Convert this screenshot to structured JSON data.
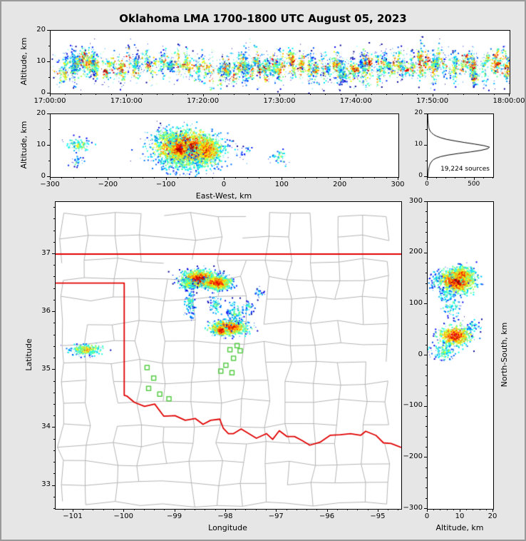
{
  "title": "Oklahoma LMA 1700-1800 UTC August 05, 2023",
  "figure": {
    "background": "#e6e6e6",
    "border_color": "#9a9a9a",
    "panel_background": "#ffffff",
    "frame_color": "#000000",
    "county_line_color": "#b4b4b4",
    "state_border_color": "#e00000",
    "station_color": "#55cc44",
    "histogram_line_color": "#000000",
    "colormap": "jet"
  },
  "chart_data": [
    {
      "id": "alt_time",
      "type": "scatter",
      "xlabel": "",
      "ylabel": "Altitude, km",
      "xlim": [
        0,
        3600
      ],
      "ylim": [
        0,
        20
      ],
      "xticks": [
        {
          "v": 0,
          "label": "17:00:00"
        },
        {
          "v": 600,
          "label": "17:10:00"
        },
        {
          "v": 1200,
          "label": "17:20:00"
        },
        {
          "v": 1800,
          "label": "17:30:00"
        },
        {
          "v": 2400,
          "label": "17:40:00"
        },
        {
          "v": 3000,
          "label": "17:50:00"
        },
        {
          "v": 3600,
          "label": "18:00:00"
        }
      ],
      "yticks": [
        {
          "v": 0,
          "label": "0"
        },
        {
          "v": 10,
          "label": "10"
        },
        {
          "v": 20,
          "label": "20"
        }
      ],
      "x_minor": 120,
      "y_minor": 5,
      "flash_band": {
        "n_flashes": 270,
        "x_range": [
          10,
          3590
        ],
        "alt_mean": 8.6,
        "alt_sigma": 1.7,
        "pts_min": 5,
        "pts_max": 75,
        "x_jitter": 11,
        "spread_min": 0.6,
        "spread_max": 2.8,
        "bg_n": 550,
        "bg_sigma": 2.8,
        "bg_tmax": 0.6
      }
    },
    {
      "id": "alt_ew",
      "type": "scatter",
      "xlabel": "East-West, km",
      "ylabel": "Altitude, km",
      "xlim": [
        -300,
        300
      ],
      "ylim": [
        0,
        20
      ],
      "xticks": [
        {
          "v": -300,
          "label": "−300"
        },
        {
          "v": -200,
          "label": "−200"
        },
        {
          "v": -100,
          "label": "−100"
        },
        {
          "v": 0,
          "label": "0"
        },
        {
          "v": 100,
          "label": "100"
        },
        {
          "v": 200,
          "label": "200"
        },
        {
          "v": 300,
          "label": "300"
        }
      ],
      "yticks": [
        {
          "v": 0,
          "label": "0"
        },
        {
          "v": 10,
          "label": "10"
        },
        {
          "v": 20,
          "label": "20"
        }
      ],
      "x_minor": 20,
      "y_minor": 5,
      "clusters": [
        {
          "cx": -65,
          "cy": 9.2,
          "sx": 26,
          "sy": 2.7,
          "n": 2100,
          "tmax": 1.0
        },
        {
          "cx": -78,
          "cy": 9.0,
          "sx": 8,
          "sy": 1.6,
          "n": 500,
          "tmax": 1.0
        },
        {
          "cx": -30,
          "cy": 8.3,
          "sx": 13,
          "sy": 2.3,
          "n": 500,
          "tmax": 0.85
        },
        {
          "cx": -70,
          "cy": 4.2,
          "sx": 28,
          "sy": 1.6,
          "n": 200,
          "tmax": 0.45
        },
        {
          "cx": -100,
          "cy": 12.8,
          "sx": 16,
          "sy": 1.4,
          "n": 140,
          "tmax": 0.5
        },
        {
          "cx": -250,
          "cy": 10.2,
          "sx": 11,
          "sy": 1.2,
          "n": 100,
          "tmax": 0.55
        },
        {
          "cx": -254,
          "cy": 4.6,
          "sx": 5,
          "sy": 0.9,
          "n": 30,
          "tmax": 0.4
        },
        {
          "cx": 95,
          "cy": 6.2,
          "sx": 9,
          "sy": 1.3,
          "n": 45,
          "tmax": 0.45
        },
        {
          "cx": 40,
          "cy": 7.5,
          "sx": 8,
          "sy": 1.2,
          "n": 25,
          "tmax": 0.35
        }
      ]
    },
    {
      "id": "hist",
      "type": "line",
      "xlabel": "",
      "ylabel": "",
      "xlim": [
        0,
        700
      ],
      "ylim": [
        0,
        20
      ],
      "xticks": [
        {
          "v": 0,
          "label": "0"
        },
        {
          "v": 500,
          "label": "500"
        }
      ],
      "yticks": [
        {
          "v": 0,
          "label": "0"
        },
        {
          "v": 10,
          "label": "10"
        },
        {
          "v": 20,
          "label": "20"
        }
      ],
      "x_minor": 100,
      "y_minor": 5,
      "annotation": "19,224 sources",
      "profile": {
        "alt": [
          0,
          0.5,
          1,
          1.5,
          2,
          2.5,
          3,
          3.5,
          4,
          4.5,
          5,
          5.5,
          6,
          6.5,
          7,
          7.5,
          8,
          8.5,
          9,
          9.5,
          10,
          10.5,
          11,
          11.5,
          12,
          12.5,
          13,
          13.5,
          14,
          14.5,
          15,
          15.5,
          16,
          16.5,
          17,
          17.5,
          18,
          18.5,
          19,
          19.5,
          20
        ],
        "count": [
          2,
          3,
          4,
          6,
          8,
          10,
          14,
          18,
          24,
          32,
          45,
          60,
          90,
          140,
          220,
          330,
          460,
          570,
          640,
          660,
          600,
          500,
          390,
          290,
          200,
          140,
          95,
          65,
          45,
          30,
          20,
          14,
          10,
          8,
          6,
          5,
          4,
          3,
          3,
          2,
          2
        ]
      }
    },
    {
      "id": "map",
      "type": "scatter_map",
      "xlabel": "Longitude",
      "ylabel": "Latitude",
      "xlim": [
        -101.35,
        -94.55
      ],
      "ylim": [
        32.6,
        37.9
      ],
      "xticks": [
        {
          "v": -101,
          "label": "−101"
        },
        {
          "v": -100,
          "label": "−100"
        },
        {
          "v": -99,
          "label": "−99"
        },
        {
          "v": -98,
          "label": "−98"
        },
        {
          "v": -97,
          "label": "−97"
        },
        {
          "v": -96,
          "label": "−96"
        },
        {
          "v": -95,
          "label": "−95"
        }
      ],
      "yticks": [
        {
          "v": 33,
          "label": "33"
        },
        {
          "v": 34,
          "label": "34"
        },
        {
          "v": 35,
          "label": "35"
        },
        {
          "v": 36,
          "label": "36"
        },
        {
          "v": 37,
          "label": "37"
        }
      ],
      "x_minor": 0.2,
      "y_minor": 0.2,
      "state_border": [
        [
          [
            -101.35,
            37.0
          ],
          [
            -94.55,
            37.0
          ]
        ],
        [
          [
            -101.35,
            36.5
          ],
          [
            -100.0,
            36.5
          ],
          [
            -100.0,
            34.56
          ],
          [
            -99.95,
            34.55
          ],
          [
            -99.8,
            34.44
          ],
          [
            -99.6,
            34.37
          ],
          [
            -99.4,
            34.41
          ],
          [
            -99.22,
            34.2
          ],
          [
            -99.0,
            34.21
          ],
          [
            -98.8,
            34.13
          ],
          [
            -98.6,
            34.16
          ],
          [
            -98.45,
            34.06
          ],
          [
            -98.3,
            34.13
          ],
          [
            -98.12,
            34.15
          ],
          [
            -98.05,
            33.99
          ],
          [
            -97.95,
            33.9
          ],
          [
            -97.85,
            33.9
          ],
          [
            -97.7,
            33.98
          ],
          [
            -97.55,
            33.9
          ],
          [
            -97.4,
            33.82
          ],
          [
            -97.2,
            33.9
          ],
          [
            -97.08,
            33.8
          ],
          [
            -96.95,
            33.95
          ],
          [
            -96.8,
            33.85
          ],
          [
            -96.65,
            33.85
          ],
          [
            -96.5,
            33.78
          ],
          [
            -96.35,
            33.7
          ],
          [
            -96.15,
            33.75
          ],
          [
            -95.95,
            33.87
          ],
          [
            -95.75,
            33.88
          ],
          [
            -95.55,
            33.9
          ],
          [
            -95.35,
            33.87
          ],
          [
            -95.25,
            33.94
          ],
          [
            -95.05,
            33.87
          ],
          [
            -94.9,
            33.74
          ],
          [
            -94.75,
            33.73
          ],
          [
            -94.55,
            33.66
          ]
        ]
      ],
      "stations": [
        [
          -99.55,
          35.04
        ],
        [
          -99.42,
          34.86
        ],
        [
          -99.52,
          34.68
        ],
        [
          -99.3,
          34.58
        ],
        [
          -99.12,
          34.5
        ],
        [
          -97.78,
          35.42
        ],
        [
          -97.72,
          35.33
        ],
        [
          -97.92,
          35.35
        ],
        [
          -97.85,
          35.2
        ],
        [
          -98.0,
          35.08
        ],
        [
          -97.88,
          34.95
        ],
        [
          -98.1,
          34.98
        ]
      ],
      "clusters": [
        {
          "cx": -98.5,
          "cy": 36.57,
          "sx": 0.17,
          "sy": 0.065,
          "n": 1300,
          "tmax": 1.0
        },
        {
          "cx": -98.17,
          "cy": 36.5,
          "sx": 0.13,
          "sy": 0.055,
          "n": 850,
          "tmax": 0.95
        },
        {
          "cx": -98.75,
          "cy": 36.48,
          "sx": 0.07,
          "sy": 0.05,
          "n": 180,
          "tmax": 0.6
        },
        {
          "cx": -98.7,
          "cy": 36.15,
          "sx": 0.05,
          "sy": 0.13,
          "n": 120,
          "tmax": 0.45
        },
        {
          "cx": -98.2,
          "cy": 36.12,
          "sx": 0.06,
          "sy": 0.07,
          "n": 70,
          "tmax": 0.42
        },
        {
          "cx": -97.95,
          "cy": 35.73,
          "sx": 0.18,
          "sy": 0.06,
          "n": 750,
          "tmax": 0.92
        },
        {
          "cx": -98.1,
          "cy": 35.68,
          "sx": 0.06,
          "sy": 0.04,
          "n": 250,
          "tmax": 1.0
        },
        {
          "cx": -97.82,
          "cy": 35.98,
          "sx": 0.1,
          "sy": 0.1,
          "n": 110,
          "tmax": 0.45
        },
        {
          "cx": -97.55,
          "cy": 36.1,
          "sx": 0.06,
          "sy": 0.06,
          "n": 45,
          "tmax": 0.4
        },
        {
          "cx": -100.75,
          "cy": 35.35,
          "sx": 0.16,
          "sy": 0.045,
          "n": 280,
          "tmax": 0.7
        },
        {
          "cx": -97.35,
          "cy": 36.33,
          "sx": 0.05,
          "sy": 0.04,
          "n": 30,
          "tmax": 0.35
        }
      ]
    },
    {
      "id": "alt_ns",
      "type": "scatter",
      "xlabel": "Altitude, km",
      "ylabel": "North-South, km",
      "xlim": [
        0,
        20
      ],
      "ylim": [
        -300,
        300
      ],
      "xticks": [
        {
          "v": 0,
          "label": "0"
        },
        {
          "v": 10,
          "label": "10"
        },
        {
          "v": 20,
          "label": "20"
        }
      ],
      "yticks": [
        {
          "v": 300,
          "label": "300"
        },
        {
          "v": 200,
          "label": "200"
        },
        {
          "v": 100,
          "label": "100"
        },
        {
          "v": 0,
          "label": "0"
        },
        {
          "v": -100,
          "label": "−100"
        },
        {
          "v": -200,
          "label": "−200"
        },
        {
          "v": -300,
          "label": "−300"
        }
      ],
      "x_minor": 2,
      "y_minor": 20,
      "clusters": [
        {
          "cx": 9,
          "cy": 146,
          "sx": 2.6,
          "sy": 11,
          "n": 1300,
          "tmax": 1.0
        },
        {
          "cx": 10.5,
          "cy": 158,
          "sx": 1.8,
          "sy": 7,
          "n": 280,
          "tmax": 0.85
        },
        {
          "cx": 8.5,
          "cy": 38,
          "sx": 2.4,
          "sy": 10,
          "n": 600,
          "tmax": 0.92
        },
        {
          "cx": 7.5,
          "cy": 95,
          "sx": 1.8,
          "sy": 12,
          "n": 80,
          "tmax": 0.45
        },
        {
          "cx": 5,
          "cy": 8,
          "sx": 2,
          "sy": 9,
          "n": 130,
          "tmax": 0.5
        },
        {
          "cx": 2.5,
          "cy": 148,
          "sx": 1.2,
          "sy": 9,
          "n": 50,
          "tmax": 0.4
        },
        {
          "cx": 13.5,
          "cy": 55,
          "sx": 1.4,
          "sy": 7,
          "n": 50,
          "tmax": 0.4
        },
        {
          "cx": 6,
          "cy": 120,
          "sx": 1.5,
          "sy": 8,
          "n": 60,
          "tmax": 0.45
        }
      ]
    }
  ]
}
